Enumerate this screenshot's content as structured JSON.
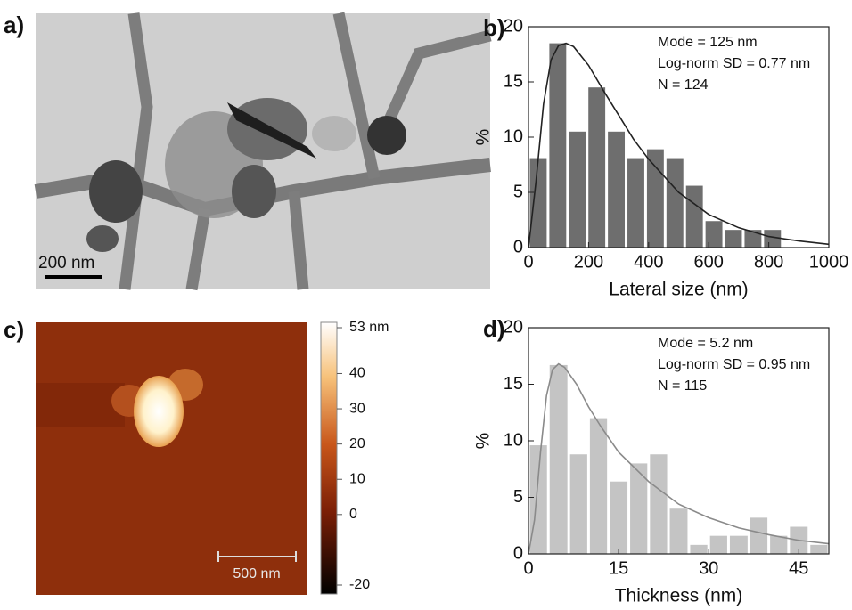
{
  "images": [
    {
      "panel_label": "a)",
      "scale_bar": "200 nm"
    },
    {
      "panel_label": "c)",
      "scale_bar": "500 nm",
      "colorbar": {
        "lim": [
          -20,
          53
        ],
        "ticks": [
          {
            "value": 53,
            "label": "53 nm"
          },
          40,
          30,
          20,
          10,
          0,
          -20
        ]
      }
    }
  ],
  "chart_data": [
    {
      "type": "histogram",
      "panel_label": "b)",
      "x_label": "Lateral size (nm)",
      "y_label": "%",
      "annotations": [
        "Mode = 125 nm",
        "Log-norm SD = 0.77 nm",
        "N = 124"
      ],
      "bins": [
        0,
        65,
        130,
        195,
        260,
        325,
        390,
        455,
        520,
        585,
        650,
        715,
        780,
        845
      ],
      "values": [
        8.1,
        18.5,
        10.5,
        14.5,
        10.5,
        8.1,
        8.9,
        8.1,
        5.6,
        2.4,
        1.6,
        1.6,
        1.6
      ],
      "color": "#6e6e6e",
      "fit": {
        "color": "#222222",
        "x": [
          0,
          25,
          50,
          75,
          100,
          125,
          150,
          200,
          250,
          300,
          350,
          400,
          500,
          600,
          700,
          800,
          900,
          1000
        ],
        "values": [
          0,
          6,
          13,
          17,
          18.3,
          18.5,
          18.2,
          16.5,
          14.2,
          12,
          9.8,
          8,
          5,
          3,
          1.8,
          1,
          0.6,
          0.3
        ]
      },
      "xlim": [
        0,
        1000
      ],
      "xticks": [
        0,
        200,
        400,
        600,
        800,
        1000
      ],
      "ylim": [
        0,
        20
      ],
      "yticks": [
        0,
        5,
        10,
        15,
        20
      ]
    },
    {
      "type": "histogram",
      "panel_label": "d)",
      "x_label": "Thickness (nm)",
      "y_label": "%",
      "annotations": [
        "Mode = 5.2 nm",
        "Log-norm SD = 0.95 nm",
        "N = 115"
      ],
      "bins": [
        0,
        3.3,
        6.7,
        10,
        13.3,
        16.7,
        20,
        23.3,
        26.7,
        30,
        33.3,
        36.7,
        40,
        43.3,
        46.7,
        50
      ],
      "values": [
        9.6,
        16.7,
        8.8,
        12,
        6.4,
        8,
        8.8,
        4,
        0.8,
        1.6,
        1.6,
        3.2,
        1.6,
        2.4,
        0.8
      ],
      "color": "#c4c4c4",
      "fit": {
        "color": "#8a8a8a",
        "x": [
          0,
          1,
          2,
          3,
          4,
          5,
          6,
          8,
          10,
          12,
          15,
          20,
          25,
          30,
          35,
          40,
          45,
          50
        ],
        "values": [
          0,
          3,
          9,
          14,
          16.3,
          16.8,
          16.5,
          15,
          13,
          11.3,
          9,
          6.4,
          4.4,
          3.2,
          2.3,
          1.7,
          1.2,
          0.9
        ]
      },
      "xlim": [
        0,
        50
      ],
      "xticks": [
        0,
        15,
        30,
        45
      ],
      "ylim": [
        0,
        20
      ],
      "yticks": [
        0,
        5,
        10,
        15,
        20
      ]
    }
  ]
}
